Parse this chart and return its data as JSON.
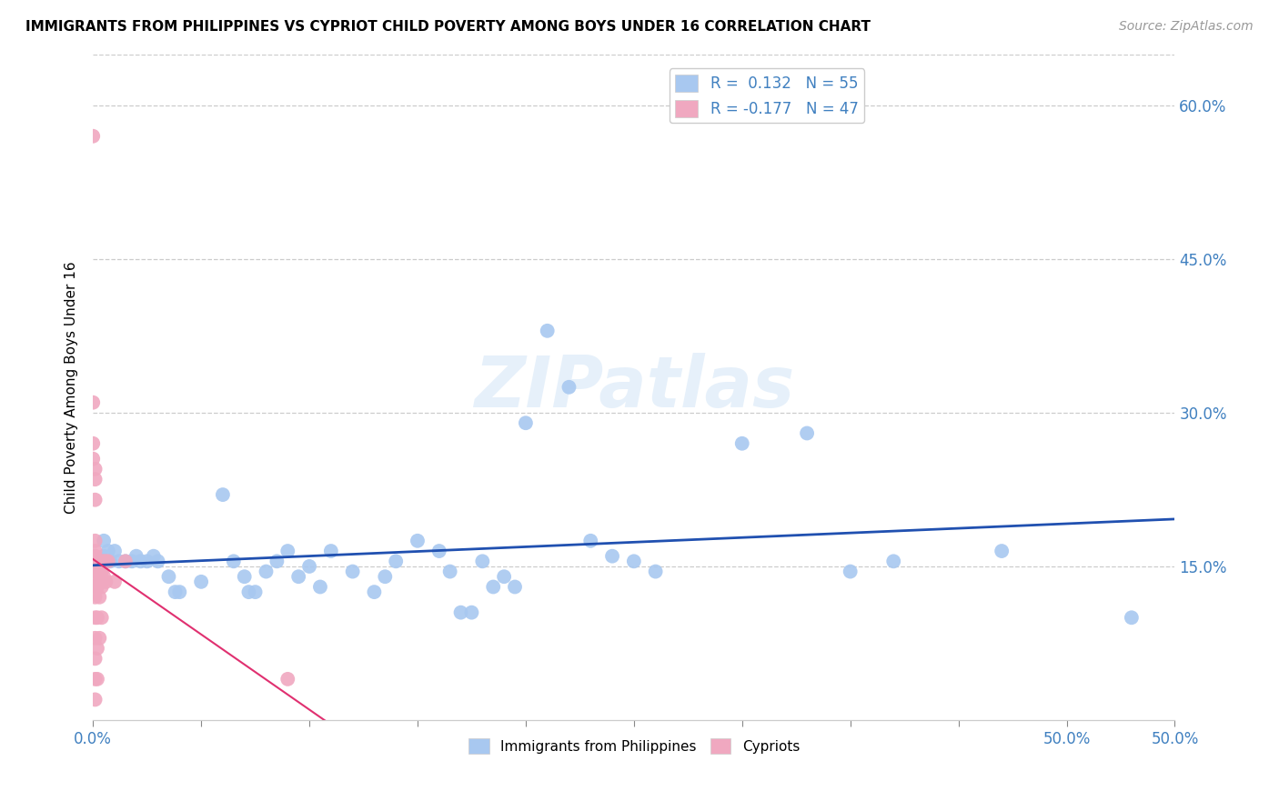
{
  "title": "IMMIGRANTS FROM PHILIPPINES VS CYPRIOT CHILD POVERTY AMONG BOYS UNDER 16 CORRELATION CHART",
  "source": "Source: ZipAtlas.com",
  "ylabel": "Child Poverty Among Boys Under 16",
  "xlim": [
    0.0,
    0.5
  ],
  "ylim": [
    0.0,
    0.65
  ],
  "xticks": [
    0.0,
    0.05,
    0.1,
    0.15,
    0.2,
    0.25,
    0.3,
    0.35,
    0.4,
    0.45,
    0.5
  ],
  "xticklabels_show": {
    "0.0": "0.0%",
    "0.5": "50.0%"
  },
  "yticks_right": [
    0.15,
    0.3,
    0.45,
    0.6
  ],
  "yticklabels_right": [
    "15.0%",
    "30.0%",
    "45.0%",
    "60.0%"
  ],
  "yticks_grid": [
    0.15,
    0.3,
    0.45,
    0.6
  ],
  "blue_color": "#a8c8f0",
  "pink_color": "#f0a8c0",
  "blue_line_color": "#2050b0",
  "pink_line_color": "#e03070",
  "legend_R1": "R =  0.132",
  "legend_N1": "N = 55",
  "legend_R2": "R = -0.177",
  "legend_N2": "N = 47",
  "blue_scatter": [
    [
      0.005,
      0.175
    ],
    [
      0.005,
      0.16
    ],
    [
      0.007,
      0.165
    ],
    [
      0.008,
      0.155
    ],
    [
      0.01,
      0.165
    ],
    [
      0.012,
      0.155
    ],
    [
      0.015,
      0.155
    ],
    [
      0.018,
      0.155
    ],
    [
      0.02,
      0.16
    ],
    [
      0.022,
      0.155
    ],
    [
      0.025,
      0.155
    ],
    [
      0.028,
      0.16
    ],
    [
      0.03,
      0.155
    ],
    [
      0.035,
      0.14
    ],
    [
      0.038,
      0.125
    ],
    [
      0.04,
      0.125
    ],
    [
      0.05,
      0.135
    ],
    [
      0.06,
      0.22
    ],
    [
      0.065,
      0.155
    ],
    [
      0.07,
      0.14
    ],
    [
      0.072,
      0.125
    ],
    [
      0.075,
      0.125
    ],
    [
      0.08,
      0.145
    ],
    [
      0.085,
      0.155
    ],
    [
      0.09,
      0.165
    ],
    [
      0.095,
      0.14
    ],
    [
      0.1,
      0.15
    ],
    [
      0.105,
      0.13
    ],
    [
      0.11,
      0.165
    ],
    [
      0.12,
      0.145
    ],
    [
      0.13,
      0.125
    ],
    [
      0.135,
      0.14
    ],
    [
      0.14,
      0.155
    ],
    [
      0.15,
      0.175
    ],
    [
      0.16,
      0.165
    ],
    [
      0.165,
      0.145
    ],
    [
      0.17,
      0.105
    ],
    [
      0.175,
      0.105
    ],
    [
      0.18,
      0.155
    ],
    [
      0.185,
      0.13
    ],
    [
      0.19,
      0.14
    ],
    [
      0.195,
      0.13
    ],
    [
      0.2,
      0.29
    ],
    [
      0.21,
      0.38
    ],
    [
      0.22,
      0.325
    ],
    [
      0.23,
      0.175
    ],
    [
      0.24,
      0.16
    ],
    [
      0.25,
      0.155
    ],
    [
      0.26,
      0.145
    ],
    [
      0.3,
      0.27
    ],
    [
      0.33,
      0.28
    ],
    [
      0.35,
      0.145
    ],
    [
      0.37,
      0.155
    ],
    [
      0.42,
      0.165
    ],
    [
      0.48,
      0.1
    ]
  ],
  "pink_scatter": [
    [
      0.0,
      0.57
    ],
    [
      0.0,
      0.31
    ],
    [
      0.0,
      0.27
    ],
    [
      0.0,
      0.255
    ],
    [
      0.001,
      0.245
    ],
    [
      0.001,
      0.235
    ],
    [
      0.001,
      0.215
    ],
    [
      0.001,
      0.175
    ],
    [
      0.001,
      0.165
    ],
    [
      0.001,
      0.16
    ],
    [
      0.001,
      0.155
    ],
    [
      0.001,
      0.155
    ],
    [
      0.001,
      0.155
    ],
    [
      0.001,
      0.15
    ],
    [
      0.001,
      0.145
    ],
    [
      0.001,
      0.13
    ],
    [
      0.001,
      0.12
    ],
    [
      0.001,
      0.1
    ],
    [
      0.001,
      0.08
    ],
    [
      0.001,
      0.06
    ],
    [
      0.001,
      0.04
    ],
    [
      0.001,
      0.02
    ],
    [
      0.002,
      0.155
    ],
    [
      0.002,
      0.15
    ],
    [
      0.002,
      0.145
    ],
    [
      0.002,
      0.14
    ],
    [
      0.002,
      0.13
    ],
    [
      0.002,
      0.1
    ],
    [
      0.002,
      0.07
    ],
    [
      0.002,
      0.04
    ],
    [
      0.003,
      0.155
    ],
    [
      0.003,
      0.145
    ],
    [
      0.003,
      0.135
    ],
    [
      0.003,
      0.12
    ],
    [
      0.003,
      0.08
    ],
    [
      0.004,
      0.155
    ],
    [
      0.004,
      0.145
    ],
    [
      0.004,
      0.13
    ],
    [
      0.004,
      0.1
    ],
    [
      0.005,
      0.155
    ],
    [
      0.005,
      0.14
    ],
    [
      0.006,
      0.155
    ],
    [
      0.006,
      0.135
    ],
    [
      0.007,
      0.155
    ],
    [
      0.01,
      0.135
    ],
    [
      0.015,
      0.155
    ],
    [
      0.09,
      0.04
    ]
  ],
  "watermark": "ZIPatlas",
  "figsize": [
    14.06,
    8.92
  ],
  "dpi": 100
}
